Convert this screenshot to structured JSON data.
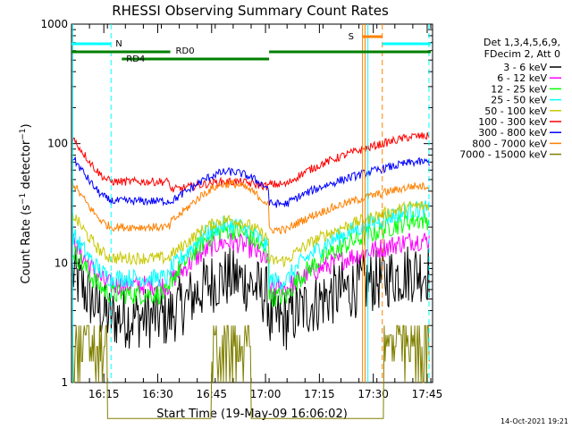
{
  "chart_data": {
    "type": "line",
    "title": "RHESSI Observing Summary Count Rates",
    "xlabel": "Start Time (19-May-09 16:06:02)",
    "ylabel_main": "Count Rate (s",
    "ylabel_sup": "−1",
    "ylabel_mid": " detector",
    "ylabel_end": ")",
    "y_scale": "log",
    "ylim": [
      1,
      1000
    ],
    "xlim_minutes": [
      0,
      100.5
    ],
    "x_ticks": [
      {
        "label": "16:15",
        "m": 9
      },
      {
        "label": "16:30",
        "m": 24
      },
      {
        "label": "16:45",
        "m": 39
      },
      {
        "label": "17:00",
        "m": 54
      },
      {
        "label": "17:15",
        "m": 69
      },
      {
        "label": "17:30",
        "m": 84
      },
      {
        "label": "17:45",
        "m": 99
      }
    ],
    "y_ticks": [
      {
        "label": "1",
        "v": 1
      },
      {
        "label": "10",
        "v": 10
      },
      {
        "label": "100",
        "v": 100
      },
      {
        "label": "1000",
        "v": 1000
      }
    ],
    "legend_header": [
      "Det 1,3,4,5,6,9,",
      "FDecim 2, Att 0"
    ],
    "legend_position": "top-right",
    "timestamp": "14-Oct-2021 19:21",
    "series": [
      {
        "name": "3 - 6 keV",
        "color": "#000000",
        "night": 3.5,
        "day": 8.5,
        "eclipse_mid": 7.5,
        "noise": 0.55
      },
      {
        "name": "6 - 12 keV",
        "color": "#ff00ff",
        "night": 6.5,
        "day": 15.5,
        "eclipse_mid": 15,
        "noise": 0.2
      },
      {
        "name": "12 - 25 keV",
        "color": "#00ff00",
        "night": 5.5,
        "day": 23,
        "eclipse_mid": 19,
        "noise": 0.2
      },
      {
        "name": "25 - 50 keV",
        "color": "#00ffff",
        "night": 7.5,
        "day": 28,
        "eclipse_mid": 21,
        "noise": 0.18
      },
      {
        "name": "50 - 100 keV",
        "color": "#c8c800",
        "night": 11,
        "day": 30,
        "eclipse_mid": 23,
        "noise": 0.12
      },
      {
        "name": "100 - 300 keV",
        "color": "#ff0000",
        "night": 48,
        "day": 115,
        "eclipse_mid": 48,
        "noise": 0.08
      },
      {
        "name": "300 - 800 keV",
        "color": "#0000ff",
        "night": 33,
        "day": 70,
        "eclipse_mid": 58,
        "noise": 0.08
      },
      {
        "name": "800 - 7000 keV",
        "color": "#ff8000",
        "night": 20,
        "day": 44,
        "eclipse_mid": 46,
        "noise": 0.08
      },
      {
        "name": "7000 - 15000 keV",
        "color": "#808000",
        "night": 1.6,
        "day": 2.5,
        "eclipse_mid": 2.6,
        "noise": 0.6
      }
    ],
    "flags": {
      "N": {
        "label": "N",
        "color": "#00ffff"
      },
      "RD0": {
        "label": "RD0",
        "color": "#008000"
      },
      "RD4": {
        "label": "RD4",
        "color": "#008000"
      },
      "S": {
        "label": "S",
        "color": "#ff8000"
      }
    },
    "events": {
      "night_intervals": [
        [
          0,
          11
        ],
        [
          86.5,
          100
        ]
      ],
      "saa_interval": [
        81,
        86.5
      ],
      "rd0_intervals": [
        [
          0,
          27.5
        ],
        [
          55,
          100
        ]
      ],
      "rd4_interval": [
        14,
        55
      ],
      "vertical_lines": [
        {
          "m": 0.3,
          "color": "#00ffff",
          "dash": false
        },
        {
          "m": 11,
          "color": "#00ffff",
          "dash": true
        },
        {
          "m": 81,
          "color": "#ff8000",
          "dash": false
        },
        {
          "m": 81.7,
          "color": "#ff8000",
          "dash": false
        },
        {
          "m": 82.5,
          "color": "#00ffff",
          "dash": false
        },
        {
          "m": 86.5,
          "color": "#ff8000",
          "dash": true
        },
        {
          "m": 99.5,
          "color": "#00ffff",
          "dash": true
        }
      ]
    }
  }
}
